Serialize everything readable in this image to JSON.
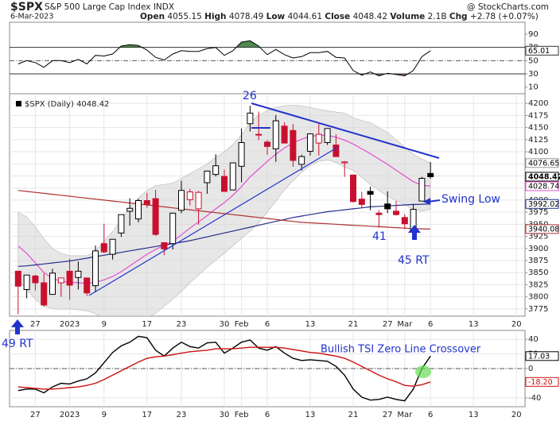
{
  "header": {
    "symbol": "$SPX",
    "name": "S&P 500 Large Cap Index",
    "exchange": "INDX",
    "source": "@ StockCharts.com",
    "date": "6-Mar-2023",
    "fields": [
      "Open",
      "High",
      "Low",
      "Close",
      "Volume",
      "Chg"
    ],
    "volume": "2.1B",
    "change": "+2.78",
    "change_pct": "(+0.07%)"
  },
  "annotations": {
    "peak": "26",
    "swing_low": "Swing Low",
    "low": "41",
    "rt45": "45 RT",
    "rt49": "49 RT",
    "crossover": "Bullish TSI Zero Line Crossover"
  },
  "chart_data": [
    {
      "type": "line",
      "xlim": [
        -1,
        59
      ],
      "ylim": [
        0,
        108
      ],
      "yticks": [
        90,
        70,
        50,
        30,
        10
      ],
      "overbought": 70,
      "oversold": 30,
      "midline": 50,
      "color": "#000000",
      "overbought_color": "#4f8a4f",
      "oversold_color": "#8a5858",
      "values": [
        45,
        50,
        47,
        40,
        50,
        50,
        47,
        52,
        45,
        58,
        57,
        60,
        72,
        74,
        73,
        66,
        55,
        51,
        60,
        65,
        64,
        64,
        68,
        70,
        58,
        65,
        78,
        80,
        72,
        59,
        67,
        59,
        54,
        56,
        62,
        62,
        64,
        55,
        54,
        35,
        28,
        33,
        27,
        31,
        29,
        27,
        35,
        56,
        65.01
      ]
    },
    {
      "type": "candlestick",
      "legend": "$SPX (Daily)",
      "xlim": [
        -1,
        59
      ],
      "ylim": [
        3760,
        4220
      ],
      "grid": true,
      "yticks": [
        3775,
        3800,
        3825,
        3850,
        3875,
        3900,
        3925,
        3950,
        3975,
        4000,
        4025,
        4050,
        4075,
        4100,
        4125,
        4150,
        4175,
        4200
      ],
      "xticks": [
        {
          "value": 2,
          "label": "27"
        },
        {
          "value": 6,
          "label": "2023"
        },
        {
          "value": 10,
          "label": "9"
        },
        {
          "value": 15,
          "label": "17"
        },
        {
          "value": 19,
          "label": "23"
        },
        {
          "value": 24,
          "label": "30"
        },
        {
          "value": 26,
          "label": "Feb"
        },
        {
          "value": 29,
          "label": "6"
        },
        {
          "value": 34,
          "label": "13"
        },
        {
          "value": 39,
          "label": "21"
        },
        {
          "value": 43,
          "label": "27"
        },
        {
          "value": 45,
          "label": "Mar"
        },
        {
          "value": 48,
          "label": "6"
        },
        {
          "value": 53,
          "label": "13"
        },
        {
          "value": 58,
          "label": "20"
        }
      ],
      "up_color": "#000000",
      "down_color": "#c8102e",
      "open": [
        3853,
        3815,
        3843,
        3829,
        3805,
        3829,
        3853,
        3840,
        3839,
        3823,
        3910,
        3888,
        3932,
        3977,
        3961,
        3999,
        4003,
        3912,
        3910,
        3979,
        4001,
        3982,
        4036,
        4053,
        4049,
        4021,
        4070,
        4158,
        4136,
        4120,
        4106,
        4153,
        4144,
        4074,
        4101,
        4118,
        4119,
        4114,
        4077,
        4052,
        4002,
        4018,
        3973,
        3992,
        3977,
        3964,
        3938,
        3998,
        4055.15
      ],
      "high": [
        3853,
        3845,
        3846,
        3848,
        3858,
        3839,
        3879,
        3873,
        3839,
        3906,
        3951,
        3919,
        3970,
        4004,
        4003,
        4015,
        4021,
        3913,
        3974,
        4040,
        4023,
        4019,
        4061,
        4095,
        4063,
        4077,
        4148,
        4195,
        4183,
        4124,
        4176,
        4161,
        4157,
        4094,
        4138,
        4159,
        4148,
        4136,
        4081,
        4052,
        4017,
        4028,
        3979,
        4018,
        3998,
        3971,
        3991,
        4048,
        4078.49
      ],
      "low": [
        3764,
        3797,
        3813,
        3780,
        3805,
        3800,
        3794,
        3815,
        3802,
        3809,
        3890,
        3877,
        3924,
        3947,
        3954,
        3984,
        3926,
        3886,
        3898,
        3973,
        3989,
        3949,
        4013,
        4049,
        4017,
        4021,
        4037,
        4142,
        4124,
        4094,
        4079,
        4117,
        4069,
        4061,
        4092,
        4092,
        4114,
        4091,
        4048,
        3995,
        3983,
        3979,
        3943,
        3973,
        3968,
        3940,
        3928,
        3998,
        4044.61
      ],
      "close": [
        3822,
        3845,
        3829,
        3783,
        3849,
        3839,
        3824,
        3853,
        3808,
        3895,
        3893,
        3919,
        3970,
        3983,
        3999,
        3991,
        3929,
        3899,
        3973,
        4020,
        4017,
        4016,
        4060,
        4071,
        4018,
        4077,
        4119,
        4180,
        4136,
        4111,
        4164,
        4118,
        4082,
        4090,
        4137,
        4136,
        4148,
        4090,
        4079,
        3997,
        3991,
        4012,
        3970,
        3982,
        3970,
        3951,
        3981,
        4045,
        4048.42
      ],
      "band": {
        "color": "#d4d4d4",
        "upper": [
          3975,
          3965,
          3945,
          3920,
          3900,
          3890,
          3885,
          3885,
          3885,
          3895,
          3915,
          3935,
          3960,
          3985,
          4005,
          4020,
          4030,
          4032,
          4035,
          4045,
          4055,
          4065,
          4075,
          4088,
          4100,
          4115,
          4135,
          4160,
          4175,
          4185,
          4192,
          4195,
          4196,
          4195,
          4192,
          4188,
          4185,
          4182,
          4180,
          4170,
          4165,
          4160,
          4150,
          4140,
          4125,
          4110,
          4095,
          4085,
          4076.65
        ],
        "lower": [
          3835,
          3815,
          3795,
          3780,
          3776,
          3774,
          3775,
          3773,
          3771,
          3765,
          3755,
          3749,
          3744,
          3743,
          3747,
          3756,
          3766,
          3780,
          3795,
          3811,
          3829,
          3845,
          3861,
          3876,
          3890,
          3905,
          3921,
          3936,
          3953,
          3975,
          3998,
          4021,
          4040,
          4057,
          4072,
          4080,
          4083,
          4078,
          4068,
          4062,
          4047,
          4032,
          4020,
          4008,
          3999,
          3990,
          3981,
          3977,
          3980.83
        ]
      },
      "series": [
        {
          "color": "#e64dd0",
          "values": [
            3905,
            3890,
            3870,
            3850,
            3838,
            3832,
            3830,
            3829,
            3828,
            3830,
            3835,
            3842,
            3852,
            3864,
            3876,
            3888,
            3898,
            3906,
            3915,
            3928,
            3942,
            3955,
            3968,
            3982,
            3995,
            4010,
            4028,
            4048,
            4064,
            4080,
            4095,
            4108,
            4118,
            4126,
            4132,
            4134,
            4134,
            4130,
            4124,
            4116,
            4106,
            4096,
            4085,
            4074,
            4062,
            4050,
            4038,
            4031,
            4028.74
          ]
        },
        {
          "color": "#232d8c",
          "values": [
            3863,
            3864,
            3866,
            3868,
            3870,
            3872,
            3874,
            3877,
            3880,
            3883,
            3886,
            3889,
            3892,
            3895,
            3898,
            3901,
            3904,
            3907,
            3910,
            3913,
            3916,
            3920,
            3924,
            3928,
            3932,
            3936,
            3940,
            3944,
            3948,
            3952,
            3956,
            3960,
            3964,
            3967,
            3970,
            3973,
            3976,
            3978,
            3980,
            3982,
            3984,
            3986,
            3987,
            3988,
            3989,
            3990,
            3991,
            3991.5,
            3992.02
          ]
        },
        {
          "color": "#b03030",
          "values": [
            4020,
            4018,
            4016,
            4014,
            4012,
            4010,
            4008,
            4006,
            4004,
            4002,
            4000,
            3998,
            3996,
            3994,
            3992,
            3990,
            3988,
            3986,
            3984,
            3982,
            3980,
            3978,
            3976,
            3974,
            3972,
            3970,
            3968,
            3966,
            3964,
            3962,
            3960,
            3958,
            3956,
            3954,
            3953,
            3952,
            3951,
            3950,
            3949,
            3948,
            3947,
            3946,
            3945,
            3944,
            3943,
            3942,
            3941,
            3940.5,
            3940.08
          ]
        }
      ]
    },
    {
      "type": "line",
      "xlim": [
        -1,
        59
      ],
      "ylim": [
        -52,
        52
      ],
      "grid": true,
      "zero_line": true,
      "yticks": [
        40,
        20,
        0,
        -40
      ],
      "xticks": [
        {
          "value": 2,
          "label": "27"
        },
        {
          "value": 6,
          "label": "2023"
        },
        {
          "value": 10,
          "label": "9"
        },
        {
          "value": 15,
          "label": "17"
        },
        {
          "value": 19,
          "label": "23"
        },
        {
          "value": 24,
          "label": "30"
        },
        {
          "value": 26,
          "label": "Feb"
        },
        {
          "value": 29,
          "label": "6"
        },
        {
          "value": 34,
          "label": "13"
        },
        {
          "value": 39,
          "label": "21"
        },
        {
          "value": 43,
          "label": "27"
        },
        {
          "value": 45,
          "label": "Mar"
        },
        {
          "value": 48,
          "label": "6"
        },
        {
          "value": 53,
          "label": "13"
        },
        {
          "value": 58,
          "label": "20"
        }
      ],
      "series": [
        {
          "color": "#000000",
          "values": [
            -30,
            -28,
            -28,
            -33,
            -25,
            -20,
            -21,
            -17,
            -14,
            -6,
            8,
            22,
            31,
            36,
            44,
            42,
            25,
            17,
            28,
            36,
            30,
            28,
            35,
            36,
            21,
            28,
            36,
            39,
            28,
            25,
            30,
            21,
            14,
            11,
            12,
            11,
            10,
            3,
            -9,
            -28,
            -39,
            -43,
            -42,
            -39,
            -42,
            -44,
            -28,
            0,
            17.03
          ]
        },
        {
          "color": "#cc1111",
          "values": [
            -25,
            -26,
            -27,
            -28,
            -28,
            -27,
            -26,
            -25,
            -23,
            -20,
            -15,
            -9,
            -3,
            3,
            9,
            14,
            16,
            17,
            19,
            21,
            23,
            24,
            25,
            27,
            27,
            27,
            28,
            29,
            29,
            29,
            29,
            28,
            26,
            24,
            22,
            21,
            19,
            17,
            14,
            9,
            3,
            -3,
            -9,
            -14,
            -18,
            -23,
            -24,
            -22,
            -18.2
          ],
          "value_labels": [
            null,
            null,
            null,
            null,
            null,
            null,
            null,
            null,
            null,
            null,
            null,
            null,
            null,
            null,
            null,
            null,
            null,
            null,
            null,
            null,
            null,
            null,
            null,
            null,
            null,
            null,
            null,
            null,
            null,
            null,
            null,
            null,
            null,
            null,
            null,
            null,
            null,
            null,
            null,
            null,
            null,
            null,
            null,
            null,
            null,
            null,
            null,
            null,
            "-18.20"
          ]
        }
      ]
    }
  ]
}
